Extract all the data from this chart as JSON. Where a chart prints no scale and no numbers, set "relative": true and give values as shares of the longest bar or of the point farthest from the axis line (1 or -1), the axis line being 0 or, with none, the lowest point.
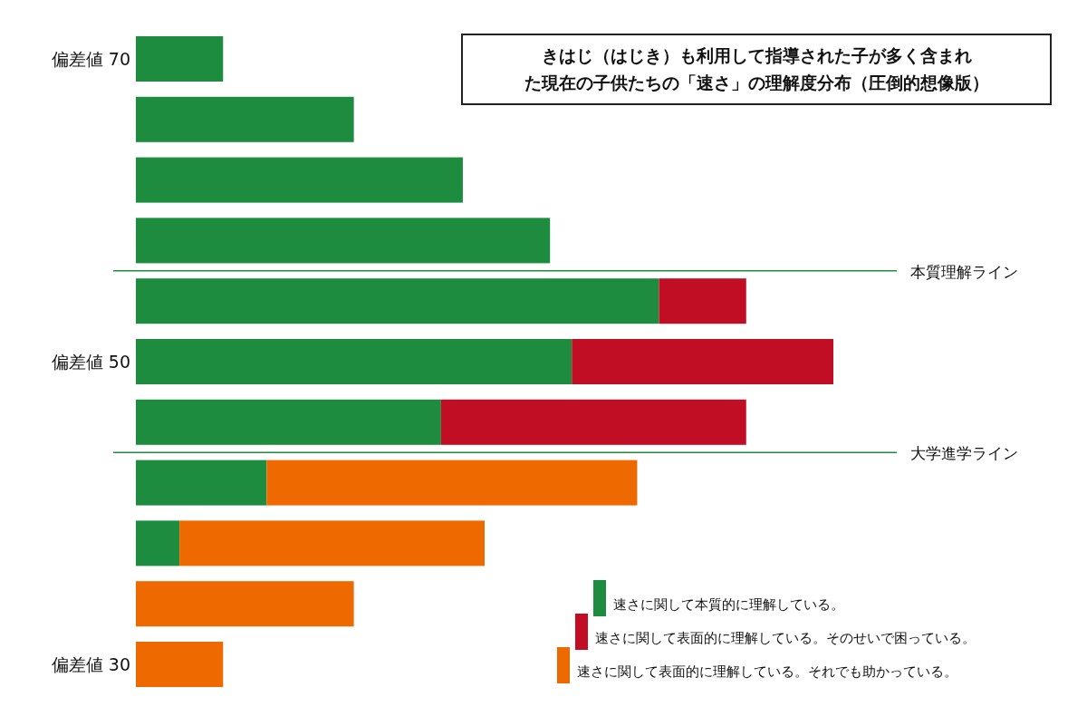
{
  "chart_data": {
    "type": "bar",
    "orientation": "horizontal",
    "stacked": true,
    "relative": true,
    "title": "きはじ（はじき）も利用して指導された子が多く含まれた現在の子供たちの「速さ」の理解度分布（圧倒的想像版）",
    "categories": [
      "偏差値 70",
      null,
      null,
      null,
      null,
      "偏差値 50",
      null,
      null,
      null,
      null,
      "偏差値 30"
    ],
    "series": [
      {
        "name": "速さに関して本質的に理解している。",
        "color": "#1e8c3e",
        "values": [
          0.125,
          0.3125,
          0.46875,
          0.59375,
          0.75,
          0.625,
          0.4375,
          0.1875,
          0.0625,
          0,
          0
        ]
      },
      {
        "name": "速さに関して表面的に理解している。そのせいで困っている。",
        "color": "#c20e25",
        "values": [
          0,
          0,
          0,
          0,
          0.125,
          0.375,
          0.4375,
          0,
          0,
          0,
          0
        ]
      },
      {
        "name": "速さに関して表面的に理解している。それでも助かっている。",
        "color": "#ee6a00",
        "values": [
          0,
          0,
          0,
          0,
          0,
          0,
          0,
          0.53125,
          0.4375,
          0.3125,
          0.125
        ]
      }
    ],
    "annotations": [
      "本質理解ライン",
      "大学進学ライン"
    ],
    "legend": "bottom right"
  }
}
